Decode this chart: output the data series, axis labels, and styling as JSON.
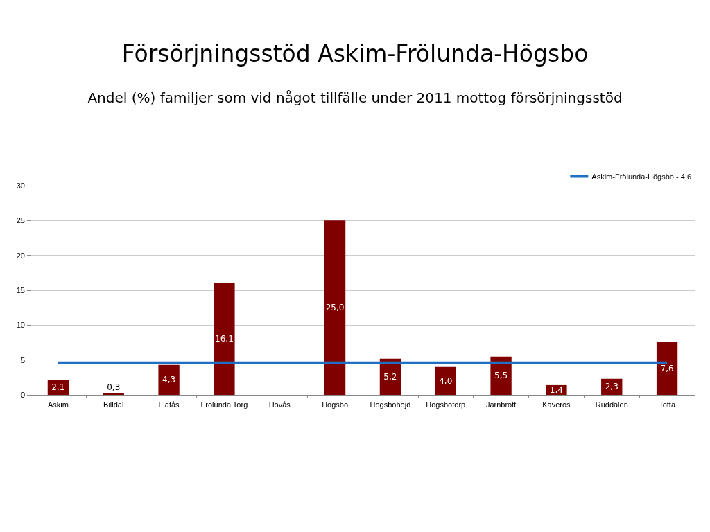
{
  "chart_data": {
    "type": "bar",
    "title": "Försörjningsstöd Askim-Frölunda-Högsbo",
    "subtitle": "Andel (%) familjer som vid något tillfälle under 2011 mottog försörjningsstöd",
    "categories": [
      "Askim",
      "Billdal",
      "Flatås",
      "Frölunda Torg",
      "Hovås",
      "Högsbo",
      "Högsbohöjd",
      "Högsbotorp",
      "Järnbrott",
      "Kaverös",
      "Ruddalen",
      "Tofta"
    ],
    "series": [
      {
        "color": "#800000",
        "values": [
          2.1,
          0.3,
          4.3,
          16.1,
          null,
          25.0,
          5.2,
          4.0,
          5.5,
          1.4,
          2.3,
          7.6
        ],
        "value_labels": [
          "2,1",
          "0,3",
          "4,3",
          "16,1",
          null,
          "25,0",
          "5,2",
          "4,0",
          "5,5",
          "1,4",
          "2,3",
          "7,6"
        ]
      },
      {
        "type": "line",
        "name": "Askim-Frölunda-Högsbo - 4,6",
        "color": "#1f6fc5",
        "values": [
          4.6,
          4.6,
          4.6,
          4.6,
          4.6,
          4.6,
          4.6,
          4.6,
          4.6,
          4.6,
          4.6,
          4.6
        ]
      }
    ],
    "ylim": [
      0,
      30
    ],
    "yticks": [
      0,
      5,
      10,
      15,
      20,
      25,
      30
    ],
    "grid": "y",
    "legend": "top right",
    "marker": "none",
    "line_style": "solid"
  }
}
